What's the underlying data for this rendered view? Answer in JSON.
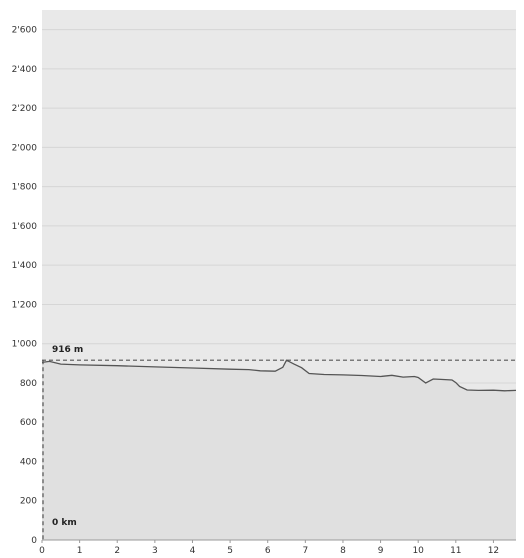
{
  "chart_data": {
    "type": "area",
    "xlabel": "",
    "ylabel": "",
    "xlim": [
      0,
      12.6
    ],
    "ylim": [
      0,
      2700
    ],
    "x_ticks": [
      0,
      1,
      2,
      3,
      4,
      5,
      6,
      7,
      8,
      9,
      10,
      11,
      12
    ],
    "x_tick_labels": [
      "0",
      "1",
      "2",
      "3",
      "4",
      "5",
      "6",
      "7",
      "8",
      "9",
      "10",
      "11",
      "12"
    ],
    "y_ticks": [
      0,
      200,
      400,
      600,
      800,
      1000,
      1200,
      1400,
      1600,
      1800,
      2000,
      2200,
      2400,
      2600
    ],
    "y_tick_labels": [
      "0",
      "200",
      "400",
      "600",
      "800",
      "1'000",
      "1'200",
      "1'400",
      "1'600",
      "1'800",
      "2'000",
      "2'200",
      "2'400",
      "2'600"
    ],
    "grid": true,
    "series": [
      {
        "x": [
          0,
          0.2,
          0.5,
          1,
          2,
          3,
          4,
          5,
          5.5,
          5.8,
          6.2,
          6.4,
          6.5,
          6.7,
          6.9,
          7.1,
          7.5,
          8,
          8.5,
          9,
          9.3,
          9.6,
          9.9,
          10.0,
          10.2,
          10.4,
          10.6,
          10.9,
          11.0,
          11.1,
          11.3,
          11.6,
          12,
          12.3,
          12.6
        ],
        "y": [
          905,
          910,
          896,
          892,
          888,
          882,
          876,
          870,
          868,
          862,
          860,
          880,
          916,
          896,
          878,
          848,
          843,
          841,
          838,
          833,
          839,
          830,
          833,
          828,
          800,
          820,
          818,
          815,
          802,
          782,
          764,
          762,
          763,
          760,
          762
        ]
      }
    ],
    "reference_line": {
      "value": 916,
      "label": "916 m"
    },
    "start_marker": {
      "x": 0,
      "label": "0 km"
    },
    "colors": {
      "plot_background": "#e9e9e9",
      "area_fill": "#e0e0e0",
      "line": "#555555",
      "grid": "#d6d6d6",
      "reference": "#555555"
    }
  }
}
